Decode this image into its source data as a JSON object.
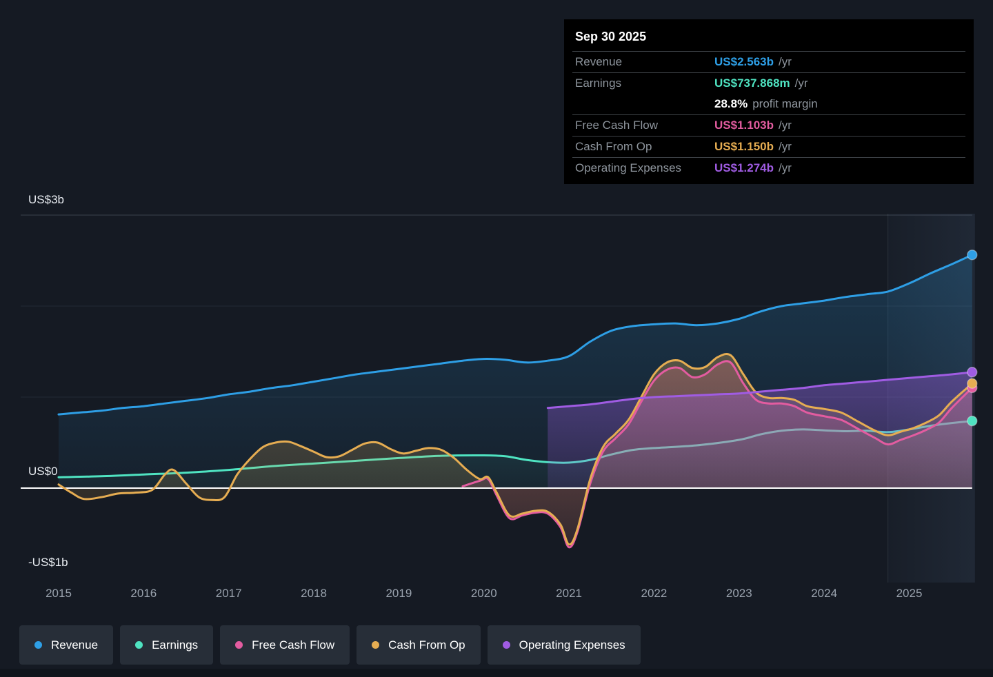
{
  "axis": {
    "y_top": "US$3b",
    "y_zero": "US$0",
    "y_bottom": "-US$1b"
  },
  "tooltip": {
    "date": "Sep 30 2025",
    "groups": [
      {
        "rows": [
          {
            "label": "Revenue",
            "value": "US$2.563b",
            "suffix": "/yr",
            "color": "#2e9fe6"
          }
        ]
      },
      {
        "rows": [
          {
            "label": "Earnings",
            "value": "US$737.868m",
            "suffix": "/yr",
            "color": "#4fe3c1"
          },
          {
            "label": "",
            "value": "28.8%",
            "suffix": "profit margin",
            "color": "#ffffff"
          }
        ]
      },
      {
        "rows": [
          {
            "label": "Free Cash Flow",
            "value": "US$1.103b",
            "suffix": "/yr",
            "color": "#e35ca0"
          }
        ]
      },
      {
        "rows": [
          {
            "label": "Cash From Op",
            "value": "US$1.150b",
            "suffix": "/yr",
            "color": "#e6ad52"
          }
        ]
      },
      {
        "rows": [
          {
            "label": "Operating Expenses",
            "value": "US$1.274b",
            "suffix": "/yr",
            "color": "#a05ce3"
          }
        ]
      }
    ]
  },
  "legend": {
    "items": [
      {
        "label": "Revenue",
        "color": "#2e9fe6"
      },
      {
        "label": "Earnings",
        "color": "#4fe3c1"
      },
      {
        "label": "Free Cash Flow",
        "color": "#e35ca0"
      },
      {
        "label": "Cash From Op",
        "color": "#e6ad52"
      },
      {
        "label": "Operating Expenses",
        "color": "#a05ce3"
      }
    ]
  },
  "chart_data": {
    "type": "line",
    "unit": "US$ billions",
    "ylim": [
      -1,
      3
    ],
    "x_ticks": [
      2015,
      2016,
      2017,
      2018,
      2019,
      2020,
      2021,
      2022,
      2023,
      2024,
      2025
    ],
    "grid": "horizontal",
    "legend_position": "bottom",
    "highlight_band_start": 2024.75,
    "series": [
      {
        "name": "Revenue",
        "color": "#2e9fe6",
        "fill_top": 0.22,
        "fill_bottom": 0.05,
        "points": [
          [
            2015,
            0.81
          ],
          [
            2015.25,
            0.83
          ],
          [
            2015.5,
            0.85
          ],
          [
            2015.75,
            0.88
          ],
          [
            2016,
            0.9
          ],
          [
            2016.25,
            0.93
          ],
          [
            2016.5,
            0.96
          ],
          [
            2016.75,
            0.99
          ],
          [
            2017,
            1.03
          ],
          [
            2017.25,
            1.06
          ],
          [
            2017.5,
            1.1
          ],
          [
            2017.75,
            1.13
          ],
          [
            2018,
            1.17
          ],
          [
            2018.25,
            1.21
          ],
          [
            2018.5,
            1.25
          ],
          [
            2018.75,
            1.28
          ],
          [
            2019,
            1.31
          ],
          [
            2019.25,
            1.34
          ],
          [
            2019.5,
            1.37
          ],
          [
            2019.75,
            1.4
          ],
          [
            2020,
            1.42
          ],
          [
            2020.25,
            1.41
          ],
          [
            2020.5,
            1.38
          ],
          [
            2020.75,
            1.4
          ],
          [
            2021,
            1.45
          ],
          [
            2021.25,
            1.61
          ],
          [
            2021.5,
            1.73
          ],
          [
            2021.75,
            1.78
          ],
          [
            2022,
            1.8
          ],
          [
            2022.25,
            1.81
          ],
          [
            2022.5,
            1.79
          ],
          [
            2022.75,
            1.81
          ],
          [
            2023,
            1.86
          ],
          [
            2023.25,
            1.94
          ],
          [
            2023.5,
            2.0
          ],
          [
            2023.75,
            2.03
          ],
          [
            2024,
            2.06
          ],
          [
            2024.25,
            2.1
          ],
          [
            2024.5,
            2.13
          ],
          [
            2024.75,
            2.16
          ],
          [
            2025,
            2.25
          ],
          [
            2025.25,
            2.36
          ],
          [
            2025.5,
            2.46
          ],
          [
            2025.74,
            2.563
          ]
        ]
      },
      {
        "name": "Earnings",
        "color": "#4fe3c1",
        "fill_top": 0.12,
        "fill_bottom": 0.03,
        "points": [
          [
            2015,
            0.12
          ],
          [
            2015.5,
            0.13
          ],
          [
            2016,
            0.15
          ],
          [
            2016.5,
            0.17
          ],
          [
            2017,
            0.2
          ],
          [
            2017.5,
            0.24
          ],
          [
            2018,
            0.27
          ],
          [
            2018.5,
            0.3
          ],
          [
            2019,
            0.33
          ],
          [
            2019.5,
            0.355
          ],
          [
            2020,
            0.36
          ],
          [
            2020.25,
            0.35
          ],
          [
            2020.5,
            0.31
          ],
          [
            2020.75,
            0.285
          ],
          [
            2021,
            0.28
          ],
          [
            2021.25,
            0.31
          ],
          [
            2021.5,
            0.37
          ],
          [
            2021.75,
            0.42
          ],
          [
            2022,
            0.44
          ],
          [
            2022.5,
            0.47
          ],
          [
            2023,
            0.53
          ],
          [
            2023.25,
            0.59
          ],
          [
            2023.5,
            0.63
          ],
          [
            2023.75,
            0.645
          ],
          [
            2024,
            0.635
          ],
          [
            2024.25,
            0.625
          ],
          [
            2024.5,
            0.63
          ],
          [
            2024.75,
            0.615
          ],
          [
            2025,
            0.645
          ],
          [
            2025.25,
            0.685
          ],
          [
            2025.5,
            0.715
          ],
          [
            2025.74,
            0.738
          ]
        ]
      },
      {
        "name": "Free Cash Flow",
        "color": "#e35ca0",
        "fill_top": 0.28,
        "fill_bottom": 0.07,
        "points": [
          [
            2019.75,
            0.02
          ],
          [
            2019.95,
            0.08
          ],
          [
            2020.05,
            0.1
          ],
          [
            2020.15,
            -0.08
          ],
          [
            2020.3,
            -0.33
          ],
          [
            2020.45,
            -0.3
          ],
          [
            2020.6,
            -0.27
          ],
          [
            2020.75,
            -0.28
          ],
          [
            2020.9,
            -0.43
          ],
          [
            2021,
            -0.65
          ],
          [
            2021.1,
            -0.48
          ],
          [
            2021.25,
            0.05
          ],
          [
            2021.4,
            0.4
          ],
          [
            2021.55,
            0.55
          ],
          [
            2021.7,
            0.7
          ],
          [
            2021.85,
            0.95
          ],
          [
            2022,
            1.18
          ],
          [
            2022.15,
            1.3
          ],
          [
            2022.3,
            1.32
          ],
          [
            2022.45,
            1.22
          ],
          [
            2022.6,
            1.25
          ],
          [
            2022.75,
            1.36
          ],
          [
            2022.9,
            1.38
          ],
          [
            2023.05,
            1.15
          ],
          [
            2023.2,
            0.97
          ],
          [
            2023.35,
            0.93
          ],
          [
            2023.5,
            0.93
          ],
          [
            2023.65,
            0.9
          ],
          [
            2023.8,
            0.83
          ],
          [
            2024,
            0.79
          ],
          [
            2024.2,
            0.75
          ],
          [
            2024.4,
            0.65
          ],
          [
            2024.6,
            0.55
          ],
          [
            2024.75,
            0.48
          ],
          [
            2024.9,
            0.53
          ],
          [
            2025.05,
            0.58
          ],
          [
            2025.2,
            0.64
          ],
          [
            2025.35,
            0.72
          ],
          [
            2025.5,
            0.88
          ],
          [
            2025.74,
            1.103
          ]
        ]
      },
      {
        "name": "Cash From Op",
        "color": "#e6ad52",
        "fill_top": 0.3,
        "fill_bottom": 0.07,
        "points": [
          [
            2015,
            0.04
          ],
          [
            2015.15,
            -0.05
          ],
          [
            2015.3,
            -0.12
          ],
          [
            2015.5,
            -0.1
          ],
          [
            2015.7,
            -0.06
          ],
          [
            2015.9,
            -0.05
          ],
          [
            2016.1,
            -0.02
          ],
          [
            2016.25,
            0.15
          ],
          [
            2016.35,
            0.2
          ],
          [
            2016.5,
            0.05
          ],
          [
            2016.65,
            -0.1
          ],
          [
            2016.8,
            -0.13
          ],
          [
            2016.95,
            -0.1
          ],
          [
            2017.1,
            0.15
          ],
          [
            2017.25,
            0.32
          ],
          [
            2017.4,
            0.45
          ],
          [
            2017.55,
            0.5
          ],
          [
            2017.7,
            0.51
          ],
          [
            2017.85,
            0.46
          ],
          [
            2018,
            0.4
          ],
          [
            2018.15,
            0.34
          ],
          [
            2018.3,
            0.35
          ],
          [
            2018.45,
            0.42
          ],
          [
            2018.6,
            0.49
          ],
          [
            2018.75,
            0.5
          ],
          [
            2018.9,
            0.43
          ],
          [
            2019.05,
            0.38
          ],
          [
            2019.2,
            0.41
          ],
          [
            2019.35,
            0.44
          ],
          [
            2019.5,
            0.42
          ],
          [
            2019.65,
            0.33
          ],
          [
            2019.8,
            0.2
          ],
          [
            2019.95,
            0.1
          ],
          [
            2020.05,
            0.12
          ],
          [
            2020.15,
            -0.05
          ],
          [
            2020.3,
            -0.3
          ],
          [
            2020.45,
            -0.28
          ],
          [
            2020.6,
            -0.25
          ],
          [
            2020.75,
            -0.26
          ],
          [
            2020.9,
            -0.4
          ],
          [
            2021,
            -0.62
          ],
          [
            2021.1,
            -0.45
          ],
          [
            2021.25,
            0.1
          ],
          [
            2021.4,
            0.45
          ],
          [
            2021.55,
            0.6
          ],
          [
            2021.7,
            0.75
          ],
          [
            2021.85,
            1.0
          ],
          [
            2022,
            1.25
          ],
          [
            2022.15,
            1.38
          ],
          [
            2022.3,
            1.4
          ],
          [
            2022.45,
            1.32
          ],
          [
            2022.6,
            1.33
          ],
          [
            2022.75,
            1.44
          ],
          [
            2022.9,
            1.46
          ],
          [
            2023.05,
            1.25
          ],
          [
            2023.2,
            1.05
          ],
          [
            2023.35,
            0.99
          ],
          [
            2023.5,
            0.99
          ],
          [
            2023.65,
            0.97
          ],
          [
            2023.8,
            0.9
          ],
          [
            2024,
            0.87
          ],
          [
            2024.2,
            0.83
          ],
          [
            2024.4,
            0.73
          ],
          [
            2024.6,
            0.63
          ],
          [
            2024.75,
            0.58
          ],
          [
            2024.9,
            0.62
          ],
          [
            2025.05,
            0.66
          ],
          [
            2025.2,
            0.72
          ],
          [
            2025.35,
            0.8
          ],
          [
            2025.5,
            0.95
          ],
          [
            2025.74,
            1.15
          ]
        ]
      },
      {
        "name": "Operating Expenses",
        "color": "#a05ce3",
        "fill_top": 0.4,
        "fill_bottom": 0.14,
        "points": [
          [
            2020.75,
            0.88
          ],
          [
            2021,
            0.9
          ],
          [
            2021.25,
            0.92
          ],
          [
            2021.5,
            0.95
          ],
          [
            2021.75,
            0.98
          ],
          [
            2022,
            1.0
          ],
          [
            2022.25,
            1.01
          ],
          [
            2022.5,
            1.02
          ],
          [
            2022.75,
            1.03
          ],
          [
            2023,
            1.04
          ],
          [
            2023.25,
            1.06
          ],
          [
            2023.5,
            1.08
          ],
          [
            2023.75,
            1.1
          ],
          [
            2024,
            1.13
          ],
          [
            2024.25,
            1.15
          ],
          [
            2024.5,
            1.17
          ],
          [
            2024.75,
            1.19
          ],
          [
            2025,
            1.21
          ],
          [
            2025.25,
            1.23
          ],
          [
            2025.5,
            1.25
          ],
          [
            2025.74,
            1.274
          ]
        ]
      }
    ]
  }
}
